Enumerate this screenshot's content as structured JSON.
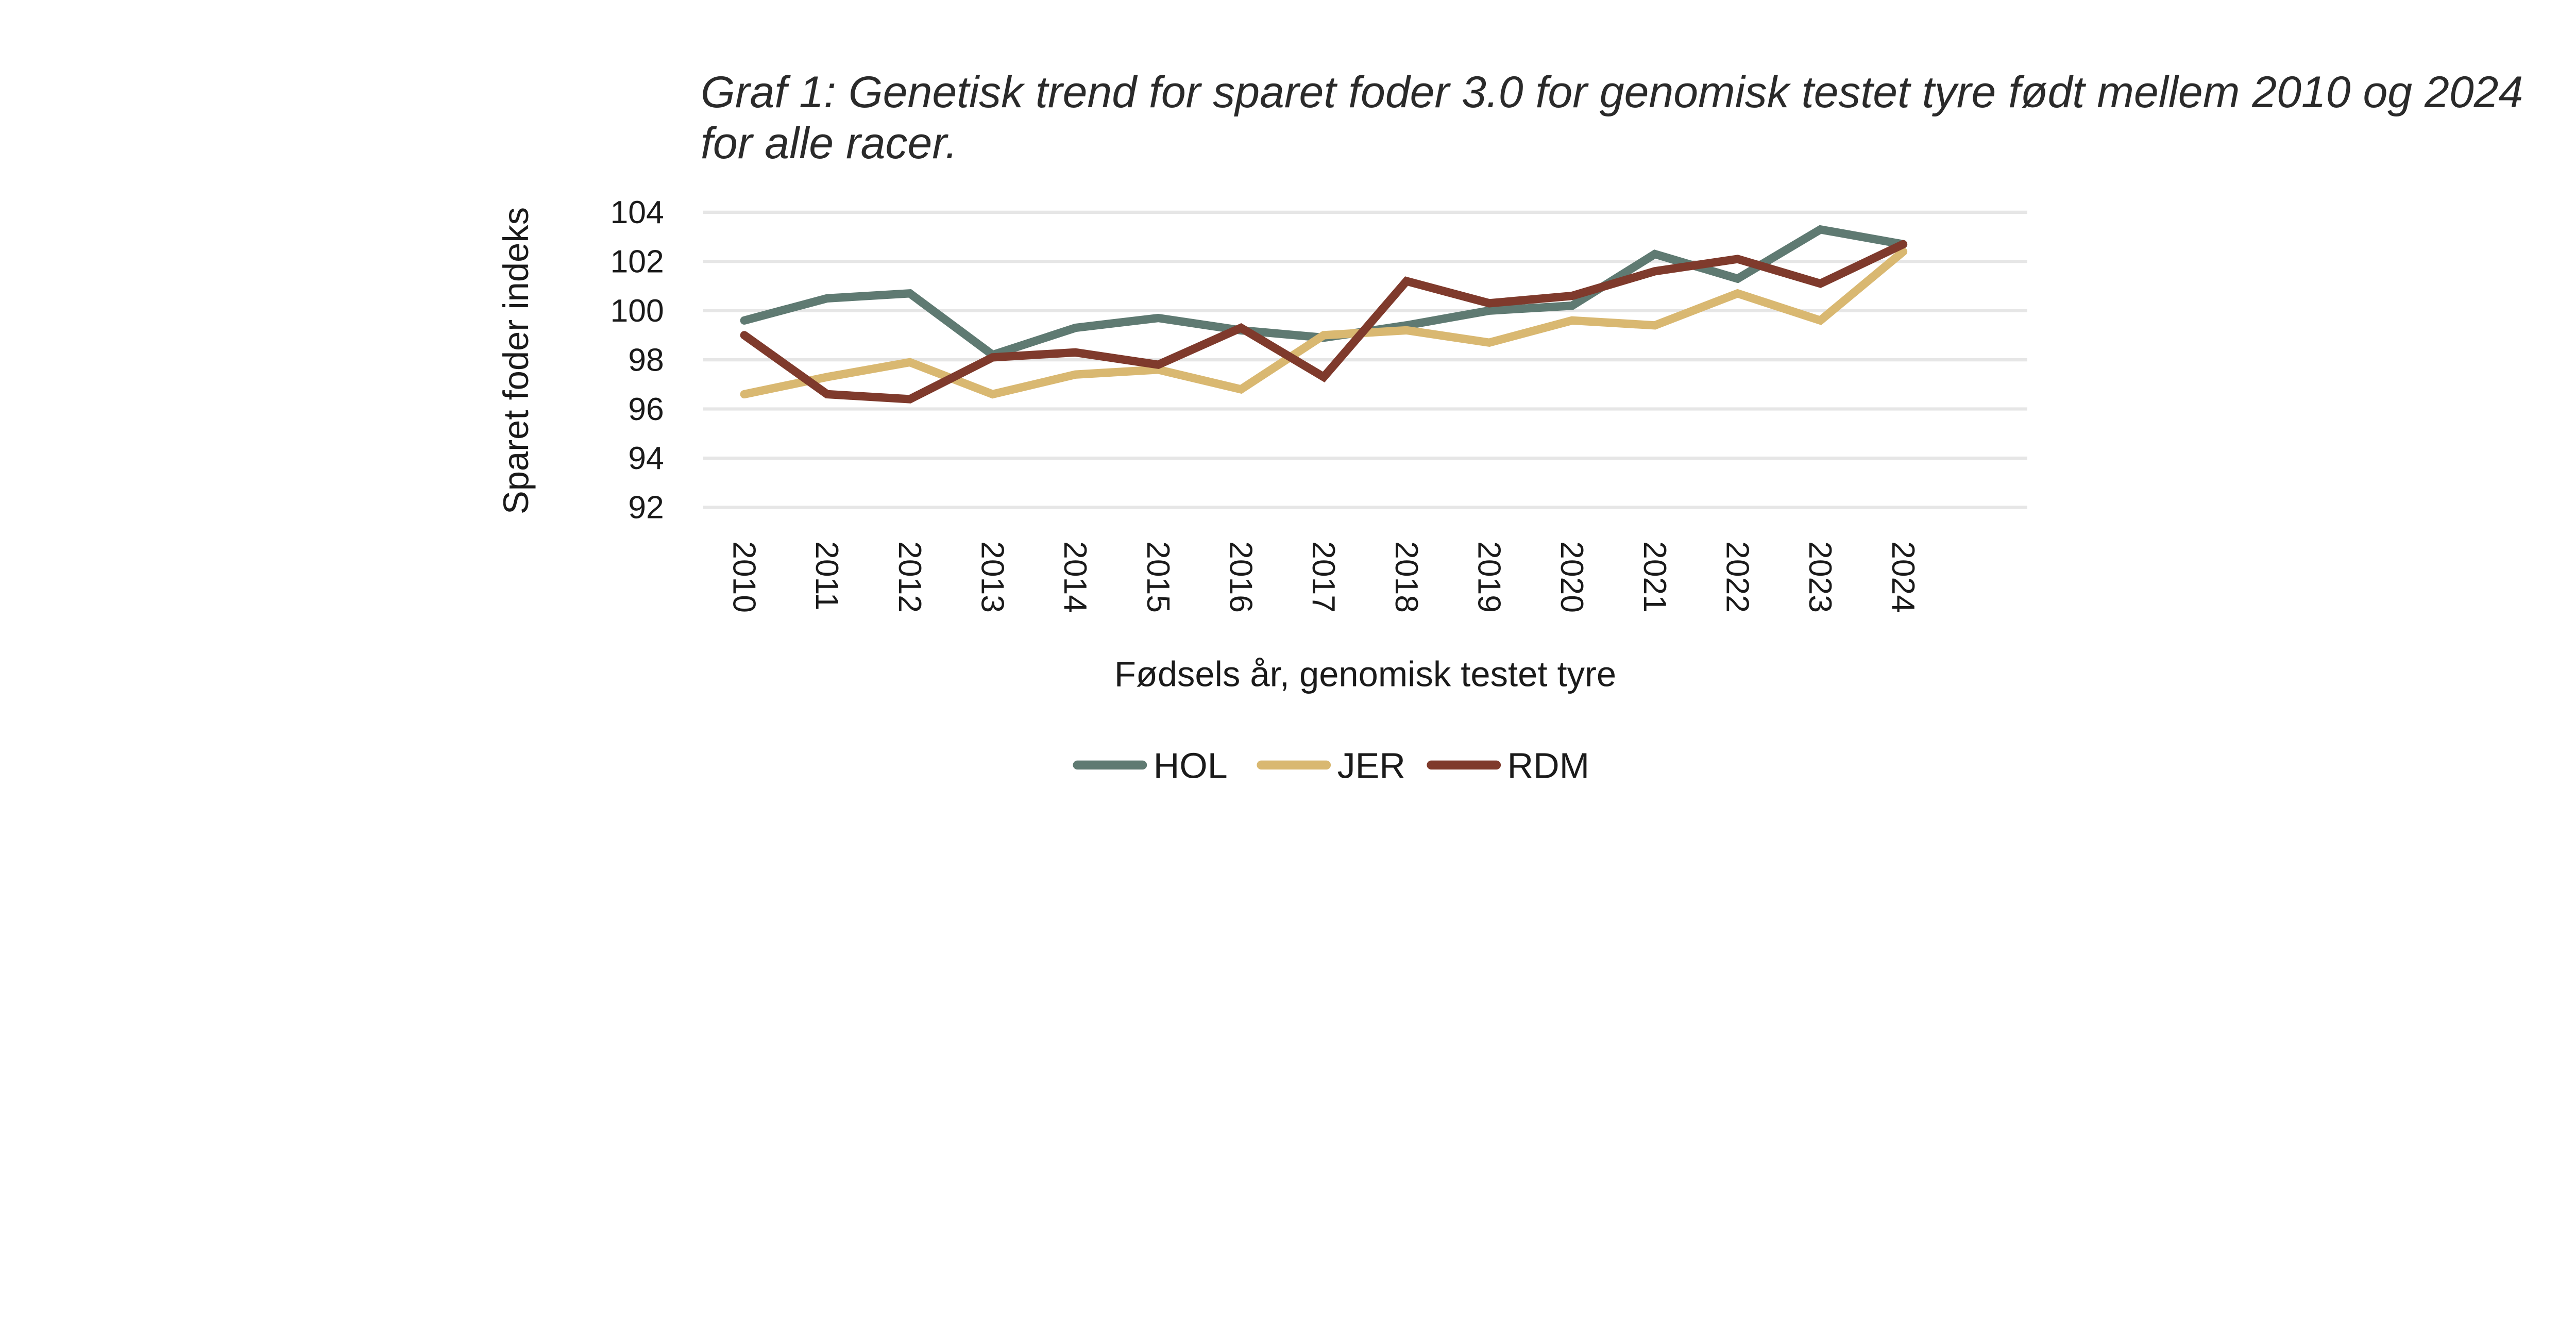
{
  "caption": "Graf 1: Genetisk trend for sparet foder 3.0 for genomisk testet tyre født mellem 2010 og 2024 for alle racer.",
  "chart_data": {
    "type": "line",
    "title": "",
    "xlabel": "Fødsels år, genomisk testet tyre",
    "ylabel": "Sparet foder indeks",
    "ylim": [
      92,
      104
    ],
    "yticks": [
      92,
      94,
      96,
      98,
      100,
      102,
      104
    ],
    "grid": true,
    "legend": "bottom",
    "categories": [
      "2010",
      "2011",
      "2012",
      "2013",
      "2014",
      "2015",
      "2016",
      "2017",
      "2018",
      "2019",
      "2020",
      "2021",
      "2022",
      "2023",
      "2024"
    ],
    "series": [
      {
        "name": "HOL",
        "color": "#5f7a72",
        "values": [
          99.6,
          100.5,
          100.7,
          98.2,
          99.3,
          99.7,
          99.2,
          98.9,
          99.4,
          100.0,
          100.2,
          102.3,
          101.3,
          103.3,
          102.7
        ]
      },
      {
        "name": "JER",
        "color": "#d9b871",
        "values": [
          96.6,
          97.3,
          97.9,
          96.6,
          97.4,
          97.6,
          96.8,
          99.0,
          99.2,
          98.7,
          99.6,
          99.4,
          100.7,
          99.6,
          102.4
        ]
      },
      {
        "name": "RDM",
        "color": "#7f3a2c",
        "values": [
          99.0,
          96.6,
          96.4,
          98.1,
          98.3,
          97.8,
          99.3,
          97.3,
          101.2,
          100.3,
          100.6,
          101.6,
          102.1,
          101.1,
          102.7
        ]
      }
    ]
  }
}
